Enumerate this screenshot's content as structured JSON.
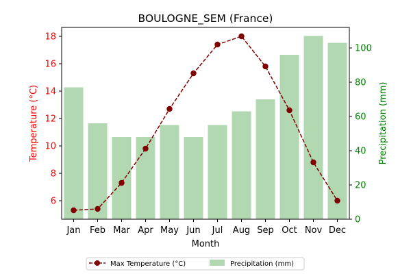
{
  "chart_data": {
    "type": "bar+line",
    "title": "BOULOGNE_SEM (France)",
    "xlabel": "Month",
    "categories": [
      "Jan",
      "Feb",
      "Mar",
      "Apr",
      "May",
      "Jun",
      "Jul",
      "Aug",
      "Sep",
      "Oct",
      "Nov",
      "Dec"
    ],
    "left_axis": {
      "label": "Temperature (°C)",
      "color": "#ff0000",
      "ylim": [
        4.65,
        18.65
      ],
      "ticks": [
        6,
        8,
        10,
        12,
        14,
        16,
        18
      ]
    },
    "right_axis": {
      "label": "Precipitation (mm)",
      "color": "#008000",
      "ylim": [
        0,
        112
      ],
      "ticks": [
        0,
        20,
        40,
        60,
        80,
        100
      ]
    },
    "series": [
      {
        "name": "Max Temperature (°C)",
        "kind": "line",
        "axis": "left",
        "color": "#800000",
        "style": "dashed-with-circle-markers",
        "values": [
          5.3,
          5.4,
          7.3,
          9.8,
          12.7,
          15.3,
          17.4,
          18.0,
          15.8,
          12.6,
          8.8,
          6.0
        ]
      },
      {
        "name": "Precipitation (mm)",
        "kind": "bar",
        "axis": "right",
        "color": "#b2d8b2",
        "values": [
          77,
          56,
          48,
          48,
          55,
          48,
          55,
          63,
          70,
          96,
          107,
          103
        ]
      }
    ],
    "legend_position": "bottom-center",
    "grid": false
  }
}
